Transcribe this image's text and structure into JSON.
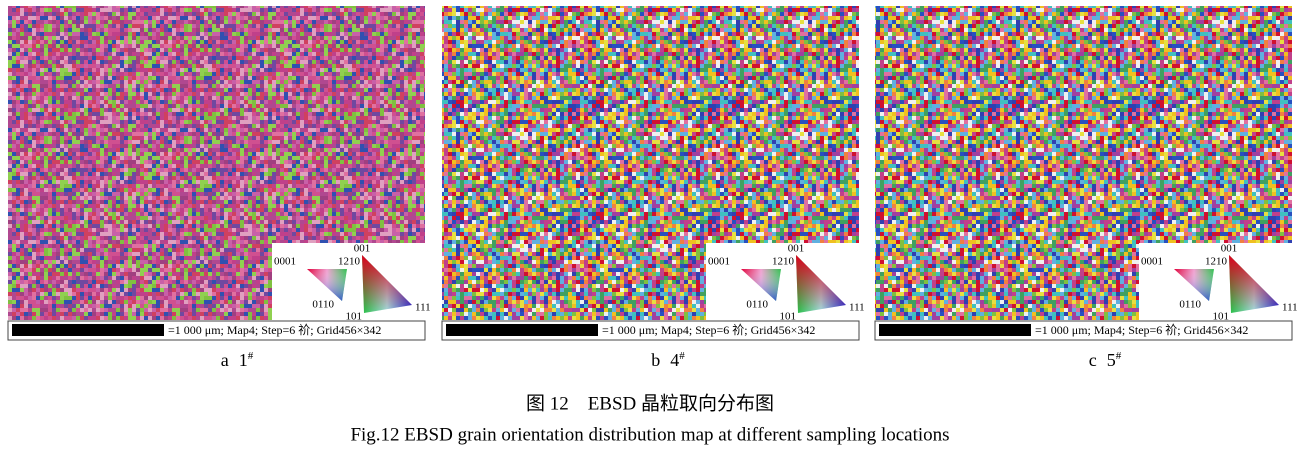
{
  "panels": [
    {
      "letter": "a",
      "number": "1",
      "mark": "#"
    },
    {
      "letter": "b",
      "number": "4",
      "mark": "#"
    },
    {
      "letter": "c",
      "number": "5",
      "mark": "#"
    }
  ],
  "legend": {
    "hex": [
      "0001",
      "1210",
      "0110"
    ],
    "cubic": [
      "001",
      "101",
      "111"
    ]
  },
  "scale_text": "=1 000 μm; Map4; Step=6 祄; Grid456×342",
  "caption": {
    "zh": "图 12　EBSD 晶粒取向分布图",
    "en": "Fig.12 EBSD grain orientation distribution map at different sampling locations"
  }
}
